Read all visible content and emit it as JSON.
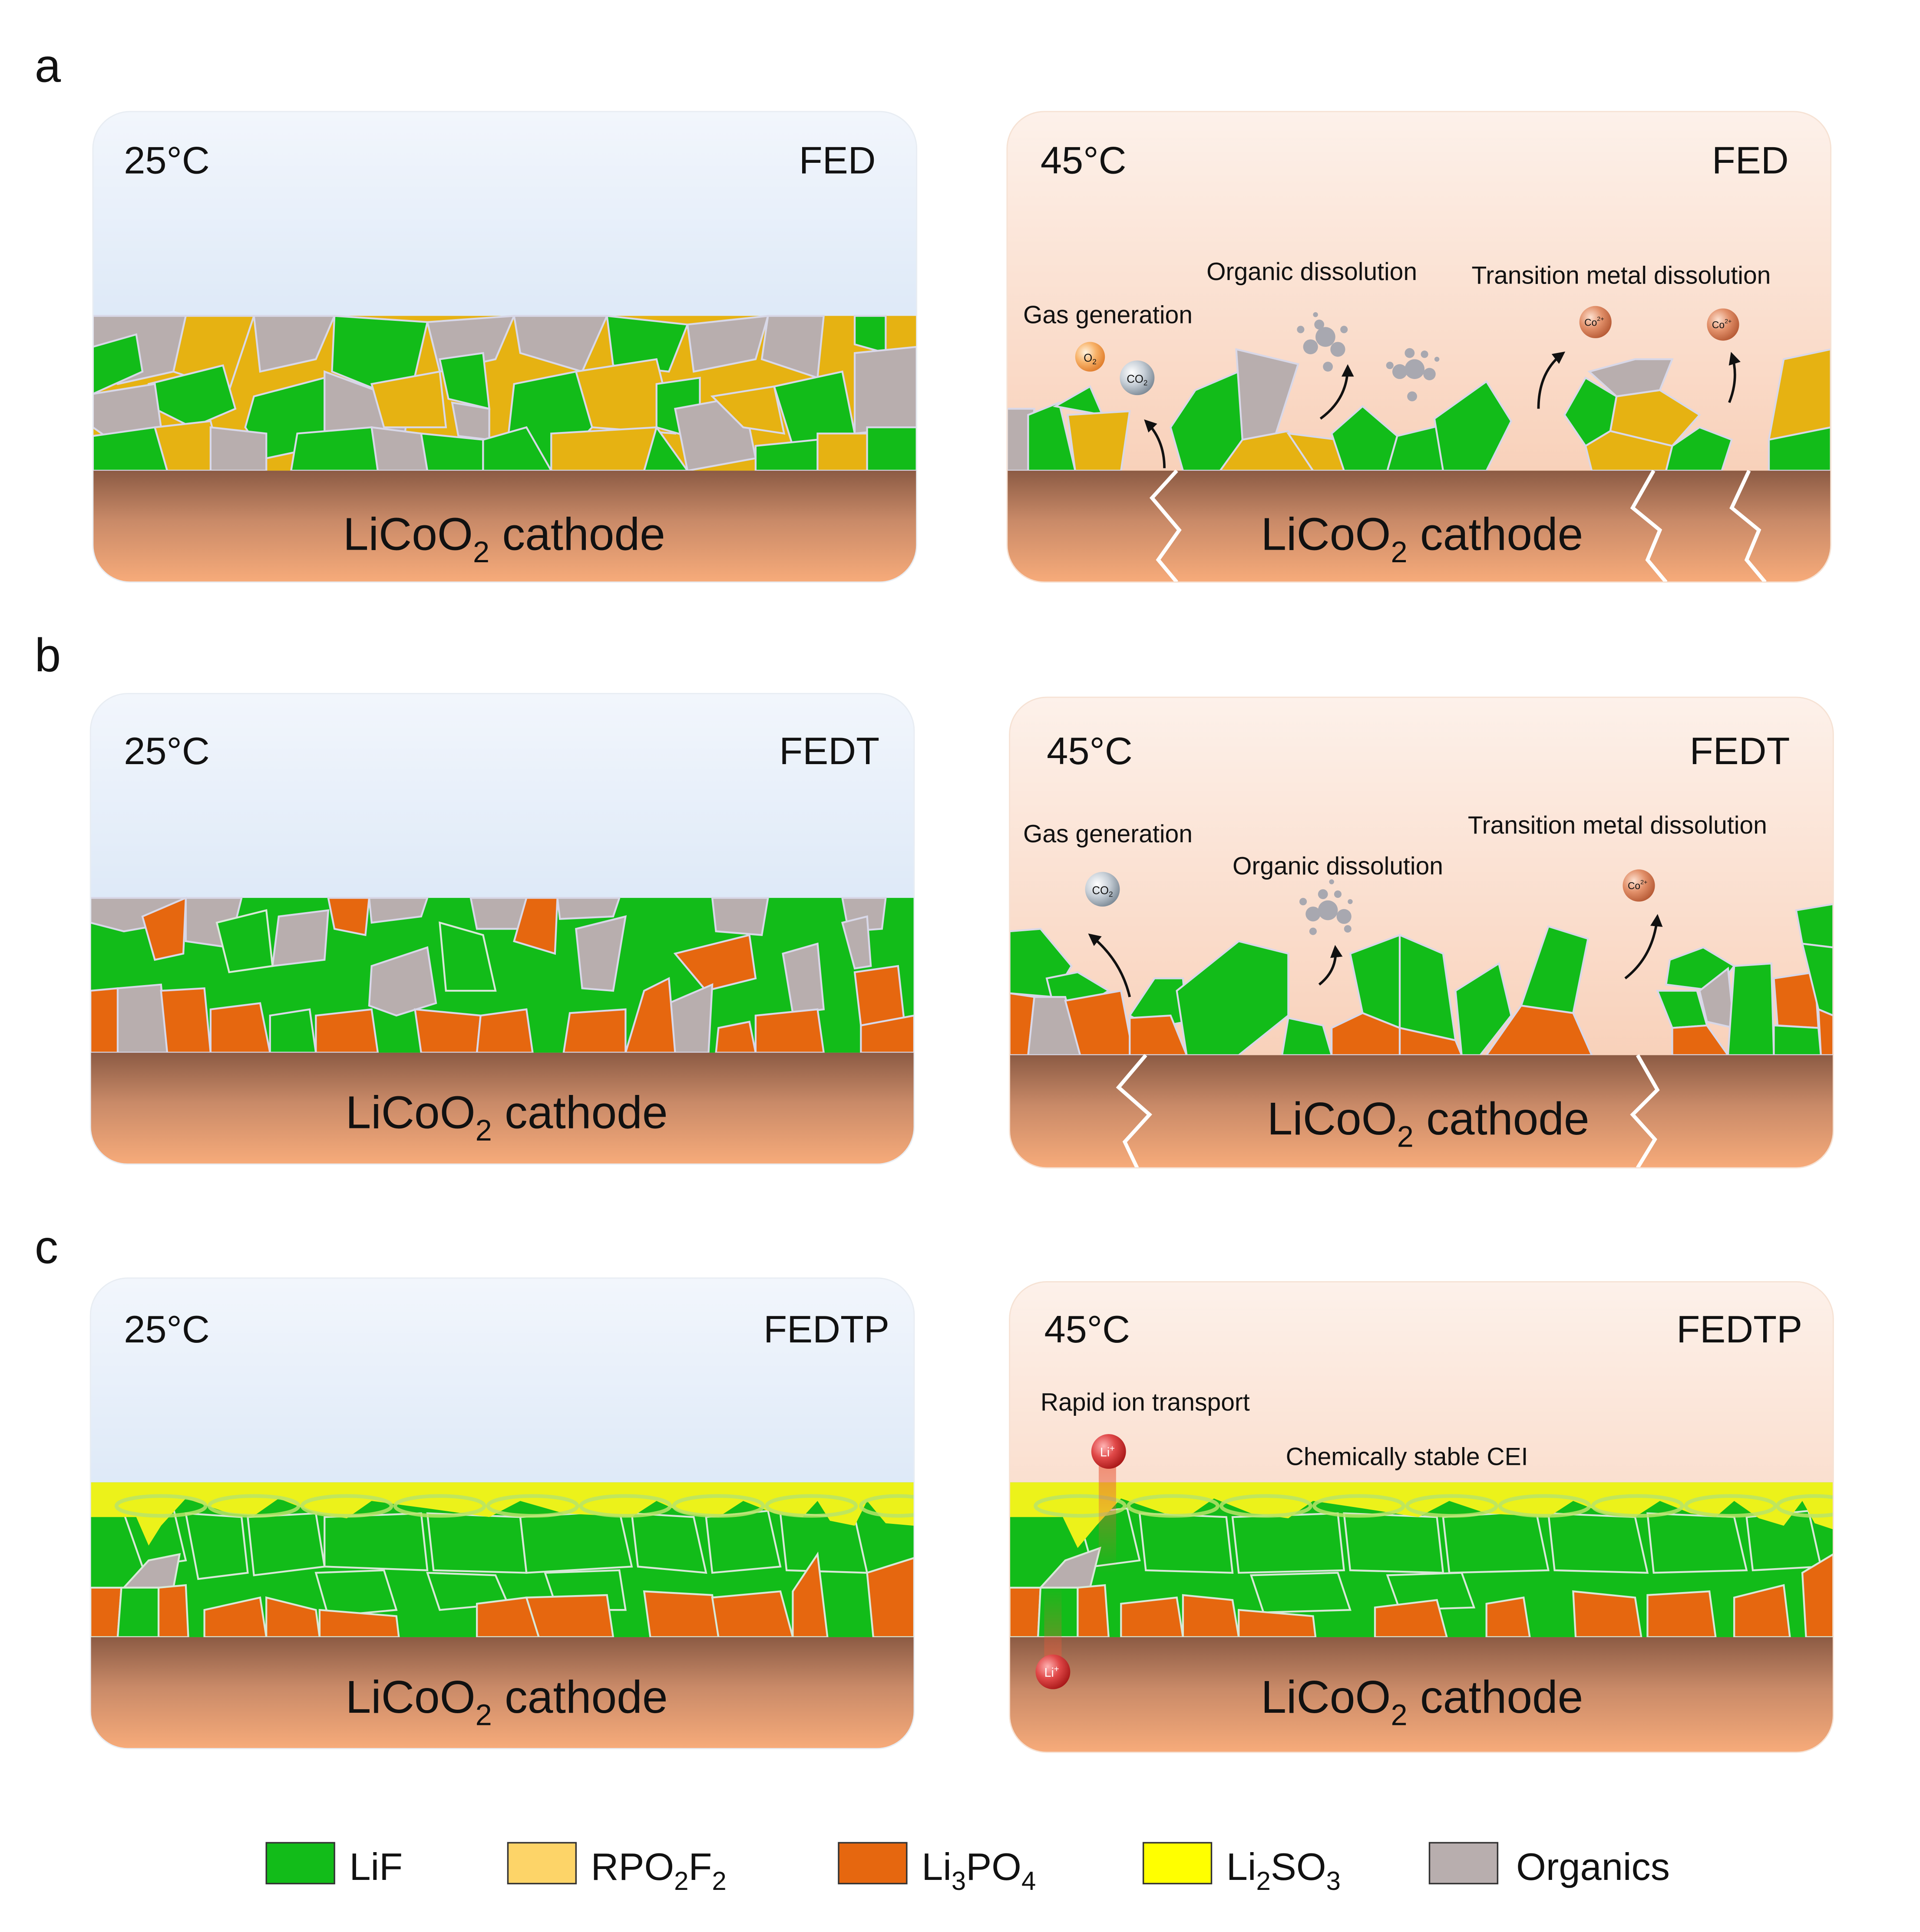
{
  "panel_letters": [
    "a",
    "b",
    "c"
  ],
  "rows": [
    {
      "left": {
        "temp": "25°C",
        "electrolyte": "FED"
      },
      "right": {
        "temp": "45°C",
        "electrolyte": "FED"
      },
      "cathode": {
        "base": "LiCoO",
        "sub": "2",
        "rest": " cathode"
      },
      "annotations": {
        "gas": "Gas generation",
        "organic": "Organic dissolution",
        "tm": "Transition metal dissolution"
      },
      "molecules": [
        {
          "base": "O",
          "sub": "2",
          "sup": ""
        },
        {
          "base": "CO",
          "sub": "2",
          "sup": ""
        },
        {
          "base": "Co",
          "sub": "",
          "sup": "2+"
        },
        {
          "base": "Co",
          "sub": "",
          "sup": "2+"
        }
      ]
    },
    {
      "left": {
        "temp": "25°C",
        "electrolyte": "FEDT"
      },
      "right": {
        "temp": "45°C",
        "electrolyte": "FEDT"
      },
      "cathode": {
        "base": "LiCoO",
        "sub": "2",
        "rest": " cathode"
      },
      "annotations": {
        "gas": "Gas generation",
        "organic": "Organic dissolution",
        "tm": "Transition metal dissolution"
      },
      "molecules": [
        {
          "base": "CO",
          "sub": "2",
          "sup": ""
        },
        {
          "base": "Co",
          "sub": "",
          "sup": "2+"
        }
      ]
    },
    {
      "left": {
        "temp": "25°C",
        "electrolyte": "FEDTP"
      },
      "right": {
        "temp": "45°C",
        "electrolyte": "FEDTP"
      },
      "cathode": {
        "base": "LiCoO",
        "sub": "2",
        "rest": " cathode"
      },
      "annotations": {
        "rapid": "Rapid ion transport",
        "stable": "Chemically stable CEI"
      },
      "ions": [
        {
          "base": "Li",
          "sup": "+"
        },
        {
          "base": "Li",
          "sup": "+"
        }
      ]
    }
  ],
  "legend": [
    {
      "key": "lif",
      "base": "LiF",
      "parts": [],
      "color": "#12bc19"
    },
    {
      "key": "rpo2f2",
      "base": "RPO",
      "parts": [
        [
          "2",
          "sub"
        ],
        [
          "F",
          ""
        ],
        [
          "2",
          "sub"
        ]
      ],
      "color": "#fdd468"
    },
    {
      "key": "li3po4",
      "base": "Li",
      "parts": [
        [
          "3",
          "sub"
        ],
        [
          "PO",
          ""
        ],
        [
          "4",
          "sub"
        ]
      ],
      "color": "#e6670f"
    },
    {
      "key": "li2so3",
      "base": "Li",
      "parts": [
        [
          "2",
          "sub"
        ],
        [
          "SO",
          ""
        ],
        [
          "3",
          "sub"
        ]
      ],
      "color": "#ffff00"
    },
    {
      "key": "organics",
      "base": "Organics",
      "parts": [],
      "color": "#b8aeae"
    }
  ],
  "colors": {
    "lif": "#12bc19",
    "rpo2f2_cei": "#e6b212",
    "li3po4": "#e6670f",
    "li2so3": "#ecf21a",
    "organics": "#b8aeae",
    "cool_bg_top": "#f2f6fc",
    "cool_bg_bottom": "#c4d9f2",
    "warm_bg_top": "#fdf1ea",
    "warm_bg_bottom": "#f7c7ab",
    "cathode_top": "#8c5b44",
    "cathode_bottom": "#f7ab7a"
  }
}
